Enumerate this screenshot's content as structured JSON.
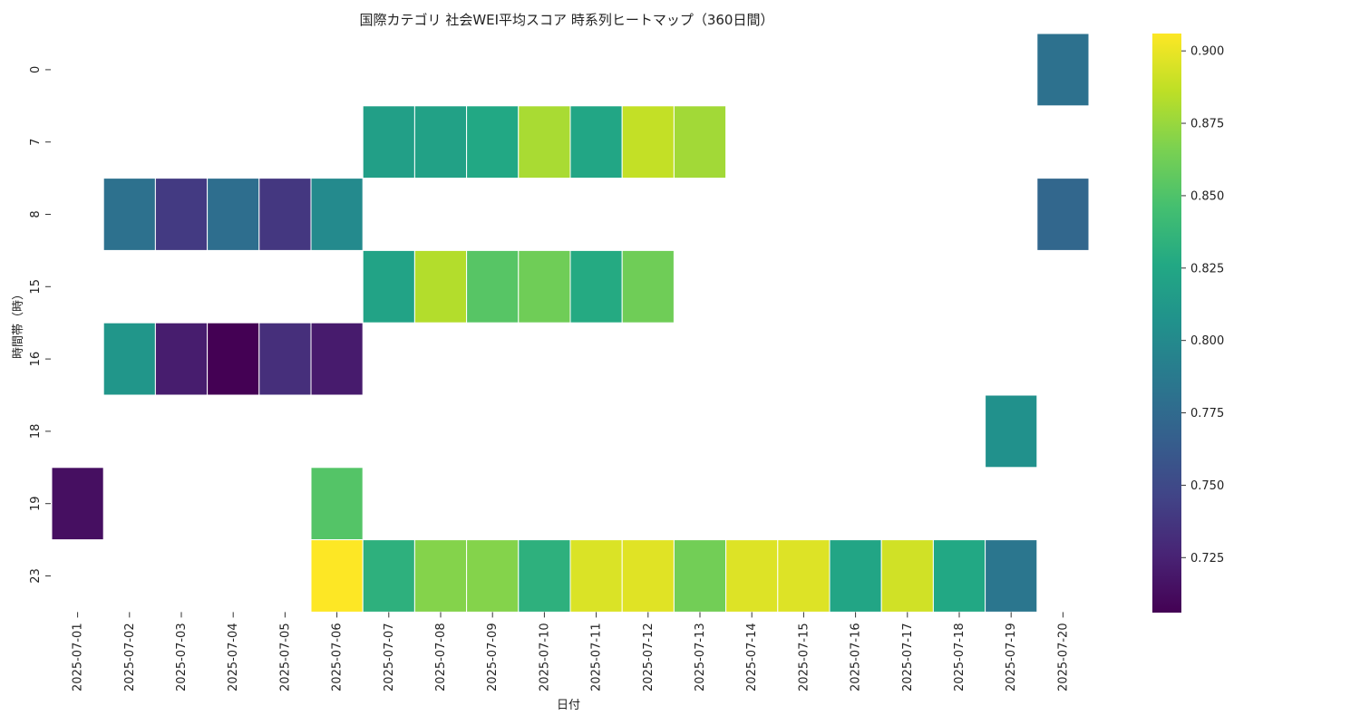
{
  "chart_data": {
    "type": "heatmap",
    "title": "国際カテゴリ 社会WEI平均スコア 時系列ヒートマップ（360日間）",
    "xlabel": "日付",
    "ylabel": "時間帯（時）",
    "x": [
      "2025-07-01",
      "2025-07-02",
      "2025-07-03",
      "2025-07-04",
      "2025-07-05",
      "2025-07-06",
      "2025-07-07",
      "2025-07-08",
      "2025-07-09",
      "2025-07-10",
      "2025-07-11",
      "2025-07-12",
      "2025-07-13",
      "2025-07-14",
      "2025-07-15",
      "2025-07-16",
      "2025-07-17",
      "2025-07-18",
      "2025-07-19",
      "2025-07-20"
    ],
    "y": [
      "0",
      "7",
      "8",
      "15",
      "16",
      "18",
      "19",
      "23"
    ],
    "values": [
      [
        null,
        null,
        null,
        null,
        null,
        null,
        null,
        null,
        null,
        null,
        null,
        null,
        null,
        null,
        null,
        null,
        null,
        null,
        null,
        0.78
      ],
      [
        null,
        null,
        null,
        null,
        null,
        null,
        0.818,
        0.82,
        0.826,
        0.88,
        0.824,
        0.888,
        0.878,
        null,
        null,
        null,
        null,
        null,
        null,
        null
      ],
      [
        null,
        0.78,
        0.74,
        0.778,
        0.738,
        0.8,
        null,
        null,
        null,
        null,
        null,
        null,
        null,
        null,
        null,
        null,
        null,
        null,
        null,
        0.772
      ],
      [
        null,
        null,
        null,
        null,
        null,
        null,
        0.822,
        0.883,
        0.853,
        0.862,
        0.828,
        0.862,
        null,
        null,
        null,
        null,
        null,
        null,
        null,
        null
      ],
      [
        null,
        0.81,
        0.722,
        0.706,
        0.733,
        0.721,
        null,
        null,
        null,
        null,
        null,
        null,
        null,
        null,
        null,
        null,
        null,
        null,
        null,
        null
      ],
      [
        null,
        null,
        null,
        null,
        null,
        null,
        null,
        null,
        null,
        null,
        null,
        null,
        null,
        null,
        null,
        null,
        null,
        null,
        0.806,
        null
      ],
      [
        0.714,
        null,
        null,
        null,
        null,
        0.852,
        null,
        null,
        null,
        null,
        null,
        null,
        null,
        null,
        null,
        null,
        null,
        null,
        null,
        null
      ],
      [
        null,
        null,
        null,
        null,
        null,
        0.906,
        0.833,
        0.869,
        0.869,
        0.833,
        0.895,
        0.897,
        0.863,
        0.896,
        0.896,
        0.823,
        0.892,
        0.826,
        0.784,
        null
      ]
    ],
    "vmin": 0.706,
    "vmax": 0.906,
    "colorbar_ticks": [
      "0.725",
      "0.750",
      "0.775",
      "0.800",
      "0.825",
      "0.850",
      "0.875",
      "0.900"
    ],
    "colormap": "viridis"
  }
}
